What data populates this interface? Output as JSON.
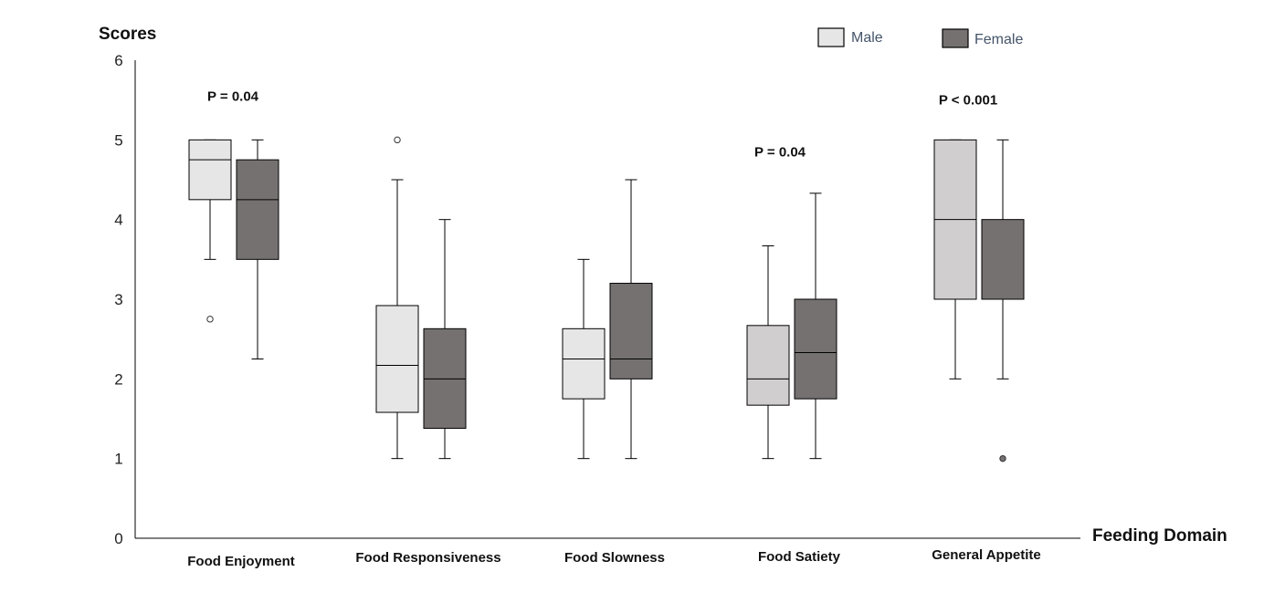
{
  "chart_data": {
    "type": "boxplot",
    "ylabel": "Scores",
    "xlabel": "Feeding Domain",
    "ylim": [
      0,
      6
    ],
    "yticks": [
      "0",
      "1",
      "2",
      "3",
      "4",
      "5",
      "6"
    ],
    "categories": [
      "Food Enjoyment",
      "Food Responsiveness",
      "Food Slowness",
      "Food Satiety",
      "General Appetite"
    ],
    "legend": {
      "position": "top-right"
    },
    "series": [
      {
        "name": "Male",
        "color": "#e6e6e6",
        "boxes": [
          {
            "min": 3.5,
            "q1": 4.25,
            "median": 4.75,
            "q3": 5.0,
            "max": 5.0,
            "outliers": [
              2.75
            ]
          },
          {
            "min": 1.0,
            "q1": 1.58,
            "median": 2.17,
            "q3": 2.92,
            "max": 4.5,
            "outliers": [
              5.0
            ]
          },
          {
            "min": 1.0,
            "q1": 1.75,
            "median": 2.25,
            "q3": 2.63,
            "max": 3.5,
            "outliers": []
          },
          {
            "min": 1.0,
            "q1": 1.67,
            "median": 2.0,
            "q3": 2.67,
            "max": 3.67,
            "outliers": []
          },
          {
            "min": 2.0,
            "q1": 3.0,
            "median": 4.0,
            "q3": 5.0,
            "max": 5.0,
            "outliers": []
          }
        ]
      },
      {
        "name": "Female",
        "color": "#767171",
        "boxes": [
          {
            "min": 2.25,
            "q1": 3.5,
            "median": 4.25,
            "q3": 4.75,
            "max": 5.0,
            "outliers": []
          },
          {
            "min": 1.0,
            "q1": 1.38,
            "median": 2.0,
            "q3": 2.63,
            "max": 4.0,
            "outliers": []
          },
          {
            "min": 1.0,
            "q1": 2.0,
            "median": 2.25,
            "q3": 3.2,
            "max": 4.5,
            "outliers": []
          },
          {
            "min": 1.0,
            "q1": 1.75,
            "median": 2.33,
            "q3": 3.0,
            "max": 4.33,
            "outliers": []
          },
          {
            "min": 2.0,
            "q1": 3.0,
            "median": 3.0,
            "q3": 4.0,
            "max": 5.0,
            "outliers": [
              1.0
            ]
          }
        ]
      }
    ],
    "annotations": [
      {
        "category": "Food Enjoyment",
        "text": "P = 0.04",
        "y": 5.55
      },
      {
        "category": "Food Satiety",
        "text": "P = 0.04",
        "y": 4.85
      },
      {
        "category": "General Appetite",
        "text": "P < 0.001",
        "y": 5.5
      }
    ]
  }
}
